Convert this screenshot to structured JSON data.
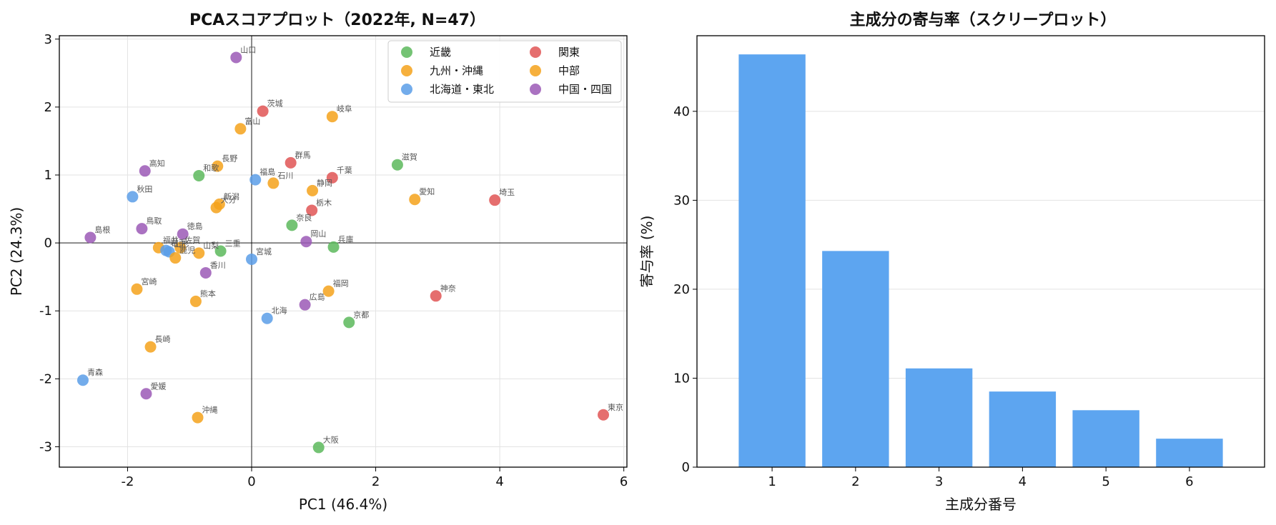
{
  "chart_data": [
    {
      "type": "scatter",
      "title": "PCAスコアプロット（2022年, N=47）",
      "xlabel": "PC1 (46.4%)",
      "ylabel": "PC2 (24.3%)",
      "xlim": [
        -3.1,
        6.05
      ],
      "ylim": [
        -3.3,
        3.05
      ],
      "xticks": [
        -2,
        0,
        2,
        4,
        6
      ],
      "yticks": [
        -3,
        -2,
        -1,
        0,
        1,
        2,
        3
      ],
      "grid": true,
      "reference_lines": {
        "x": 0,
        "y": 0
      },
      "legend_position": "top-right",
      "legend_columns": 2,
      "groups": [
        {
          "name": "近畿",
          "color": "#5cb85c"
        },
        {
          "name": "関東",
          "color": "#e05555"
        },
        {
          "name": "九州・沖縄",
          "color": "#f5a21b"
        },
        {
          "name": "中部",
          "color": "#f5a21b"
        },
        {
          "name": "北海道・東北",
          "color": "#5a9ee8"
        },
        {
          "name": "中国・四国",
          "color": "#9b59b6"
        }
      ],
      "points": [
        {
          "label": "山口",
          "x": -0.25,
          "y": 2.73,
          "group": "中国・四国"
        },
        {
          "label": "茨城",
          "x": 0.18,
          "y": 1.94,
          "group": "関東"
        },
        {
          "label": "岐阜",
          "x": 1.3,
          "y": 1.86,
          "group": "中部"
        },
        {
          "label": "富山",
          "x": -0.18,
          "y": 1.68,
          "group": "中部"
        },
        {
          "label": "滋賀",
          "x": 2.35,
          "y": 1.15,
          "group": "近畿"
        },
        {
          "label": "群馬",
          "x": 0.63,
          "y": 1.18,
          "group": "関東"
        },
        {
          "label": "長野",
          "x": -0.55,
          "y": 1.13,
          "group": "中部"
        },
        {
          "label": "高知",
          "x": -1.72,
          "y": 1.06,
          "group": "中国・四国"
        },
        {
          "label": "和歌",
          "x": -0.85,
          "y": 0.99,
          "group": "近畿"
        },
        {
          "label": "千葉",
          "x": 1.3,
          "y": 0.96,
          "group": "関東"
        },
        {
          "label": "福島",
          "x": 0.06,
          "y": 0.93,
          "group": "北海道・東北"
        },
        {
          "label": "石川",
          "x": 0.35,
          "y": 0.88,
          "group": "中部"
        },
        {
          "label": "静岡",
          "x": 0.98,
          "y": 0.77,
          "group": "中部"
        },
        {
          "label": "秋田",
          "x": -1.92,
          "y": 0.68,
          "group": "北海道・東北"
        },
        {
          "label": "愛知",
          "x": 2.63,
          "y": 0.64,
          "group": "中部"
        },
        {
          "label": "埼玉",
          "x": 3.92,
          "y": 0.63,
          "group": "関東"
        },
        {
          "label": "新潟",
          "x": -0.52,
          "y": 0.57,
          "group": "中部"
        },
        {
          "label": "大分",
          "x": -0.57,
          "y": 0.52,
          "group": "九州・沖縄"
        },
        {
          "label": "栃木",
          "x": 0.97,
          "y": 0.48,
          "group": "関東"
        },
        {
          "label": "奈良",
          "x": 0.65,
          "y": 0.26,
          "group": "近畿"
        },
        {
          "label": "鳥取",
          "x": -1.77,
          "y": 0.21,
          "group": "中国・四国"
        },
        {
          "label": "徳島",
          "x": -1.11,
          "y": 0.13,
          "group": "中国・四国"
        },
        {
          "label": "島根",
          "x": -2.6,
          "y": 0.08,
          "group": "中国・四国"
        },
        {
          "label": "岡山",
          "x": 0.88,
          "y": 0.02,
          "group": "中国・四国"
        },
        {
          "label": "兵庫",
          "x": 1.32,
          "y": -0.06,
          "group": "近畿"
        },
        {
          "label": "福井",
          "x": -1.5,
          "y": -0.07,
          "group": "中部"
        },
        {
          "label": "佐賀",
          "x": -1.15,
          "y": -0.07,
          "group": "九州・沖縄"
        },
        {
          "label": "岩手",
          "x": -1.38,
          "y": -0.11,
          "group": "北海道・東北"
        },
        {
          "label": "山形",
          "x": -1.33,
          "y": -0.13,
          "group": "北海道・東北"
        },
        {
          "label": "三重",
          "x": -0.5,
          "y": -0.12,
          "group": "近畿"
        },
        {
          "label": "山梨",
          "x": -0.85,
          "y": -0.15,
          "group": "中部"
        },
        {
          "label": "鹿児",
          "x": -1.23,
          "y": -0.22,
          "group": "九州・沖縄"
        },
        {
          "label": "宮城",
          "x": 0.0,
          "y": -0.24,
          "group": "北海道・東北"
        },
        {
          "label": "香川",
          "x": -0.74,
          "y": -0.44,
          "group": "中国・四国"
        },
        {
          "label": "宮崎",
          "x": -1.85,
          "y": -0.68,
          "group": "九州・沖縄"
        },
        {
          "label": "福岡",
          "x": 1.24,
          "y": -0.71,
          "group": "九州・沖縄"
        },
        {
          "label": "神奈",
          "x": 2.97,
          "y": -0.78,
          "group": "関東"
        },
        {
          "label": "熊本",
          "x": -0.9,
          "y": -0.86,
          "group": "九州・沖縄"
        },
        {
          "label": "広島",
          "x": 0.86,
          "y": -0.91,
          "group": "中国・四国"
        },
        {
          "label": "北海",
          "x": 0.25,
          "y": -1.11,
          "group": "北海道・東北"
        },
        {
          "label": "京都",
          "x": 1.57,
          "y": -1.17,
          "group": "近畿"
        },
        {
          "label": "長崎",
          "x": -1.63,
          "y": -1.53,
          "group": "九州・沖縄"
        },
        {
          "label": "青森",
          "x": -2.72,
          "y": -2.02,
          "group": "北海道・東北"
        },
        {
          "label": "愛媛",
          "x": -1.7,
          "y": -2.22,
          "group": "中国・四国"
        },
        {
          "label": "沖縄",
          "x": -0.87,
          "y": -2.57,
          "group": "九州・沖縄"
        },
        {
          "label": "東京",
          "x": 5.67,
          "y": -2.53,
          "group": "関東"
        },
        {
          "label": "大阪",
          "x": 1.08,
          "y": -3.01,
          "group": "近畿"
        }
      ]
    },
    {
      "type": "bar",
      "title": "主成分の寄与率（スクリープロット）",
      "xlabel": "主成分番号",
      "ylabel": "寄与率 (%)",
      "categories": [
        "1",
        "2",
        "3",
        "4",
        "5",
        "6"
      ],
      "values": [
        46.4,
        24.3,
        11.1,
        8.5,
        6.4,
        3.2
      ],
      "ylim": [
        0,
        48.5
      ],
      "yticks": [
        0,
        10,
        20,
        30,
        40
      ],
      "grid": true,
      "color": "#5da5f0"
    }
  ]
}
